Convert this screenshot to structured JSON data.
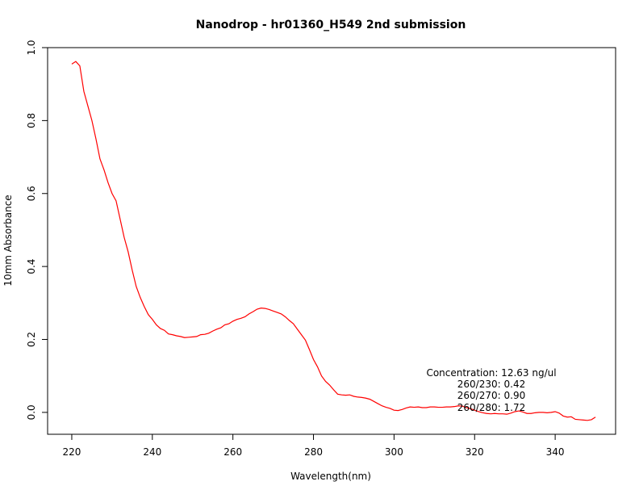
{
  "chart_data": {
    "type": "line",
    "title": "Nanodrop - hr01360_H549 2nd submission",
    "xlabel": "Wavelength(nm)",
    "ylabel": "10mm Absorbance",
    "xlim": [
      214,
      355
    ],
    "ylim": [
      -0.06,
      1.0
    ],
    "xticks": [
      220,
      240,
      260,
      280,
      300,
      320,
      340
    ],
    "yticks": [
      0.0,
      0.2,
      0.4,
      0.6,
      0.8,
      1.0
    ],
    "xtick_labels": [
      "220",
      "240",
      "260",
      "280",
      "300",
      "320",
      "340"
    ],
    "ytick_labels": [
      "0.0",
      "0.2",
      "0.4",
      "0.6",
      "0.8",
      "1.0"
    ],
    "grid": false,
    "line_color": "#ff0000",
    "annotations": [
      "Concentration: 12.63 ng/ul",
      "260/230: 0.42",
      "260/270: 0.90",
      "260/280: 1.72"
    ],
    "series": [
      {
        "x": [
          220,
          221,
          222,
          223,
          224,
          225,
          226,
          227,
          228,
          229,
          230,
          231,
          232,
          233,
          234,
          235,
          236,
          237,
          238,
          239,
          240,
          241,
          242,
          243,
          244,
          245,
          246,
          247,
          248,
          249,
          250,
          251,
          252,
          253,
          254,
          255,
          256,
          257,
          258,
          259,
          260,
          261,
          262,
          263,
          264,
          265,
          266,
          267,
          268,
          269,
          270,
          271,
          272,
          273,
          274,
          275,
          276,
          277,
          278,
          279,
          280,
          281,
          282,
          283,
          284,
          285,
          286,
          287,
          288,
          289,
          290,
          291,
          292,
          293,
          294,
          295,
          296,
          297,
          298,
          299,
          300,
          301,
          302,
          303,
          304,
          305,
          306,
          307,
          308,
          309,
          310,
          311,
          312,
          313,
          314,
          315,
          316,
          317,
          318,
          319,
          320,
          321,
          322,
          323,
          324,
          325,
          326,
          327,
          328,
          329,
          330,
          331,
          332,
          333,
          334,
          335,
          336,
          337,
          338,
          339,
          340,
          341,
          342,
          343,
          344,
          345,
          346,
          347,
          348,
          349,
          350
        ],
        "y": [
          0.955,
          0.962,
          0.95,
          0.88,
          0.84,
          0.8,
          0.75,
          0.695,
          0.665,
          0.63,
          0.6,
          0.58,
          0.53,
          0.48,
          0.44,
          0.39,
          0.345,
          0.315,
          0.29,
          0.268,
          0.255,
          0.24,
          0.23,
          0.225,
          0.215,
          0.213,
          0.21,
          0.208,
          0.205,
          0.206,
          0.207,
          0.208,
          0.213,
          0.214,
          0.217,
          0.223,
          0.228,
          0.232,
          0.24,
          0.243,
          0.25,
          0.255,
          0.258,
          0.262,
          0.27,
          0.276,
          0.283,
          0.286,
          0.285,
          0.282,
          0.278,
          0.274,
          0.27,
          0.262,
          0.252,
          0.243,
          0.228,
          0.213,
          0.198,
          0.172,
          0.145,
          0.125,
          0.1,
          0.085,
          0.075,
          0.062,
          0.05,
          0.048,
          0.047,
          0.048,
          0.044,
          0.042,
          0.041,
          0.039,
          0.036,
          0.03,
          0.024,
          0.018,
          0.014,
          0.011,
          0.006,
          0.005,
          0.008,
          0.012,
          0.015,
          0.014,
          0.015,
          0.013,
          0.013,
          0.015,
          0.015,
          0.014,
          0.014,
          0.015,
          0.015,
          0.016,
          0.018,
          0.017,
          0.013,
          0.01,
          0.006,
          0.002,
          -0.001,
          -0.003,
          -0.004,
          -0.003,
          -0.004,
          -0.004,
          -0.005,
          -0.002,
          0.002,
          0.004,
          0.001,
          -0.003,
          -0.003,
          -0.001,
          0.0,
          0.0,
          -0.001,
          0.0,
          0.002,
          -0.002,
          -0.01,
          -0.013,
          -0.012,
          -0.019,
          -0.02,
          -0.021,
          -0.022,
          -0.02,
          -0.013
        ]
      }
    ]
  }
}
